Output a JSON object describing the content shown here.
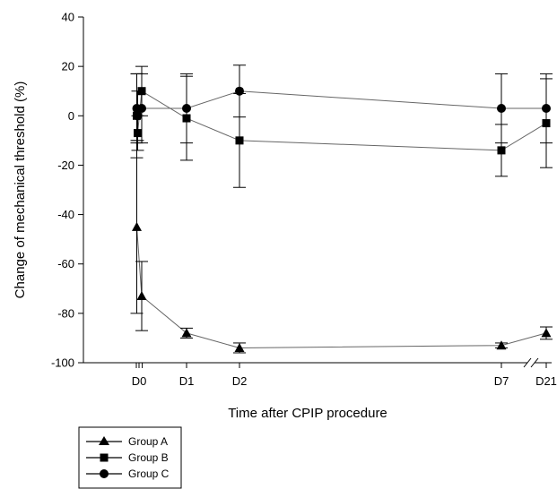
{
  "chart_data": {
    "type": "line",
    "title": "",
    "xlabel": "Time after CPIP procedure",
    "ylabel": "Change of mechanical threshold (%)",
    "ylim": [
      -100,
      40
    ],
    "yticks": [
      -100,
      -80,
      -60,
      -40,
      -20,
      0,
      20,
      40
    ],
    "x_unit": "days after procedure",
    "xticks": [
      {
        "label": "D0",
        "x": 0
      },
      {
        "label": "D1",
        "x": 1
      },
      {
        "label": "D2",
        "x": 2
      },
      {
        "label": "D7",
        "x": 7
      },
      {
        "label": "D21",
        "x": 21
      }
    ],
    "x_axis_break": "between D7 and D21",
    "grid": false,
    "legend_position": "bottom-left",
    "series": [
      {
        "name": "Group A",
        "marker": "triangle",
        "points": [
          {
            "x": -0.05,
            "y": -45,
            "err": 35
          },
          {
            "x": 0.05,
            "y": -73,
            "err": 14
          },
          {
            "x": 1,
            "y": -88,
            "err": 2
          },
          {
            "x": 2,
            "y": -94,
            "err": 2
          },
          {
            "x": 7,
            "y": -93,
            "err": 1
          },
          {
            "x": 21,
            "y": -88,
            "err": 2.5
          }
        ]
      },
      {
        "name": "Group B",
        "marker": "square",
        "points": [
          {
            "x": -0.05,
            "y": 0,
            "err": 17
          },
          {
            "x": -0.03,
            "y": -7,
            "err": 7
          },
          {
            "x": 0.05,
            "y": 10,
            "err": 10
          },
          {
            "x": 1,
            "y": -1,
            "err": 17
          },
          {
            "x": 2,
            "y": -10,
            "err": 19
          },
          {
            "x": 7,
            "y": -14,
            "err": 10.5
          },
          {
            "x": 21,
            "y": -3,
            "err": 18
          }
        ]
      },
      {
        "name": "Group C",
        "marker": "circle",
        "points": [
          {
            "x": -0.05,
            "y": 3,
            "err": 14
          },
          {
            "x": -0.03,
            "y": 0,
            "err": 10
          },
          {
            "x": 0.05,
            "y": 3,
            "err": 14
          },
          {
            "x": 1,
            "y": 3,
            "err": 14
          },
          {
            "x": 2,
            "y": 10,
            "err": 10.5
          },
          {
            "x": 7,
            "y": 3,
            "err": 14
          },
          {
            "x": 21,
            "y": 3,
            "err": 14
          }
        ]
      }
    ]
  }
}
